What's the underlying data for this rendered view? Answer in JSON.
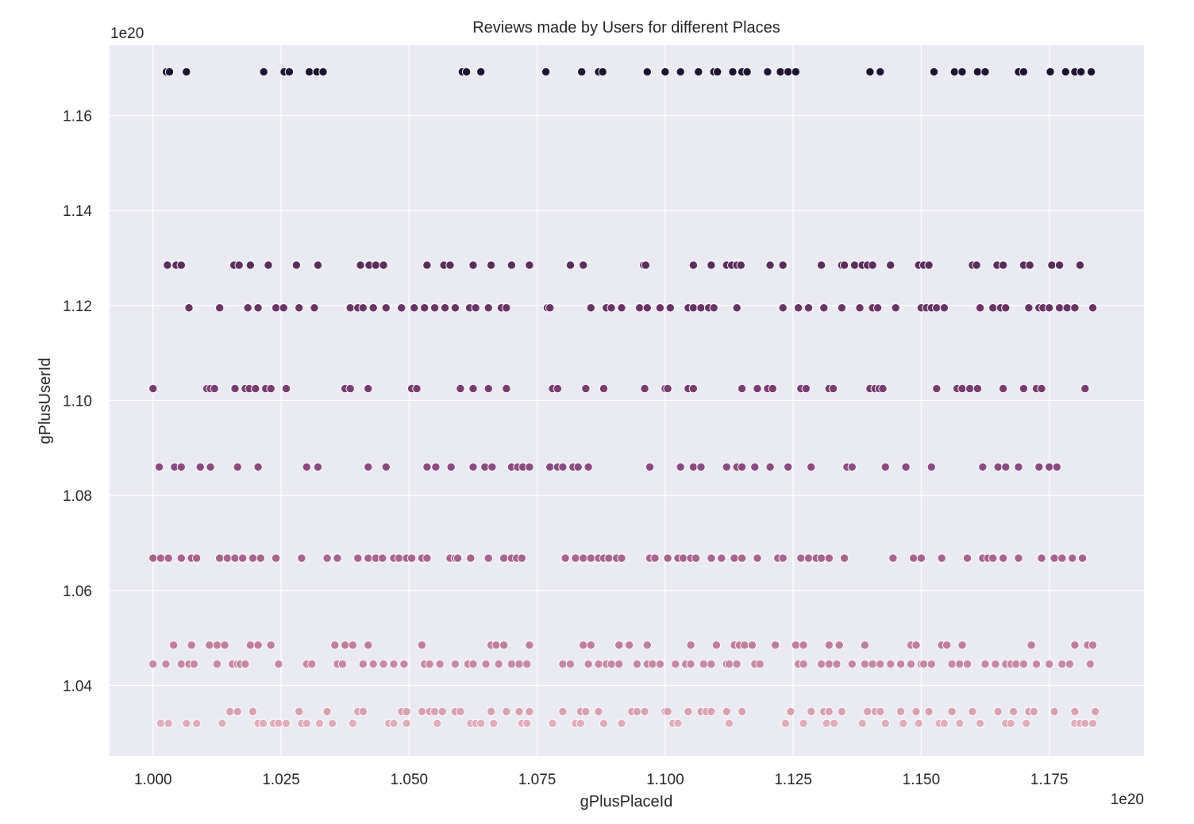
{
  "chart_data": {
    "type": "scatter",
    "title": "Reviews made by Users for different Places",
    "xlabel": "gPlusPlaceId",
    "ylabel": "gPlusUserId",
    "x_offset_label": "1e20",
    "y_offset_label": "1e20",
    "xlim": [
      0.9915,
      1.1935
    ],
    "ylim": [
      1.0252,
      1.1748
    ],
    "x_ticks": [
      1.0,
      1.025,
      1.05,
      1.075,
      1.1,
      1.125,
      1.15,
      1.175
    ],
    "x_tick_labels": [
      "1.000",
      "1.025",
      "1.050",
      "1.075",
      "1.100",
      "1.125",
      "1.150",
      "1.175"
    ],
    "y_ticks": [
      1.04,
      1.06,
      1.08,
      1.1,
      1.12,
      1.14,
      1.16
    ],
    "y_tick_labels": [
      "1.04",
      "1.06",
      "1.08",
      "1.10",
      "1.12",
      "1.14",
      "1.16"
    ],
    "grid": true,
    "background": "#eaeaf2",
    "grid_color": "#ffffff",
    "series": [
      {
        "y": 1.1692,
        "color": "#1d1533",
        "x": [
          1.0026,
          1.0032,
          1.0065,
          1.0216,
          1.0256,
          1.0266,
          1.0305,
          1.032,
          1.0332,
          1.0604,
          1.0612,
          1.064,
          1.0767,
          1.0837,
          1.087,
          1.0878,
          1.0965,
          1.1,
          1.103,
          1.1065,
          1.1095,
          1.1102,
          1.1132,
          1.115,
          1.116,
          1.12,
          1.1225,
          1.124,
          1.1255,
          1.14,
          1.142,
          1.1525,
          1.1565,
          1.158,
          1.161,
          1.1625,
          1.169,
          1.17,
          1.1752,
          1.1782,
          1.18,
          1.1812,
          1.1832
        ]
      },
      {
        "y": 1.1285,
        "color": "#5b2e5e",
        "x": [
          1.0028,
          1.0045,
          1.0055,
          1.0158,
          1.0168,
          1.019,
          1.0225,
          1.028,
          1.0322,
          1.0405,
          1.0422,
          1.0435,
          1.045,
          1.0535,
          1.0568,
          1.058,
          1.0625,
          1.066,
          1.07,
          1.0735,
          1.0815,
          1.084,
          1.0958,
          1.0962,
          1.1055,
          1.109,
          1.112,
          1.113,
          1.114,
          1.1148,
          1.1205,
          1.123,
          1.1305,
          1.1345,
          1.135,
          1.137,
          1.1385,
          1.1395,
          1.1405,
          1.144,
          1.1495,
          1.1505,
          1.1515,
          1.16,
          1.1608,
          1.1648,
          1.166,
          1.17,
          1.1712,
          1.1755,
          1.177,
          1.181
        ]
      },
      {
        "y": 1.1195,
        "color": "#6a3467",
        "x": [
          1.007,
          1.013,
          1.0185,
          1.0205,
          1.024,
          1.0255,
          1.0285,
          1.0315,
          1.0385,
          1.04,
          1.041,
          1.043,
          1.0455,
          1.0485,
          1.051,
          1.053,
          1.055,
          1.057,
          1.059,
          1.0618,
          1.063,
          1.0655,
          1.068,
          1.069,
          1.077,
          1.0775,
          1.0855,
          1.0885,
          1.0895,
          1.0915,
          1.095,
          1.0965,
          1.099,
          1.101,
          1.1045,
          1.1055,
          1.107,
          1.1085,
          1.1095,
          1.114,
          1.123,
          1.126,
          1.128,
          1.131,
          1.1345,
          1.138,
          1.1405,
          1.1415,
          1.145,
          1.15,
          1.151,
          1.152,
          1.153,
          1.1545,
          1.1615,
          1.164,
          1.1655,
          1.1665,
          1.171,
          1.173,
          1.1738,
          1.175,
          1.177,
          1.1785,
          1.18,
          1.1835
        ]
      },
      {
        "y": 1.1025,
        "color": "#7a3c72",
        "x": [
          1.0,
          1.0105,
          1.0112,
          1.012,
          1.016,
          1.018,
          1.0188,
          1.02,
          1.022,
          1.023,
          1.026,
          1.0375,
          1.0385,
          1.042,
          1.0505,
          1.0515,
          1.06,
          1.0625,
          1.0655,
          1.069,
          1.078,
          1.079,
          1.0845,
          1.088,
          1.096,
          1.1,
          1.1005,
          1.1045,
          1.1055,
          1.115,
          1.118,
          1.12,
          1.121,
          1.1265,
          1.1275,
          1.132,
          1.1328,
          1.14,
          1.141,
          1.1418,
          1.1425,
          1.153,
          1.157,
          1.158,
          1.1595,
          1.161,
          1.166,
          1.17,
          1.1725,
          1.1735,
          1.182
        ]
      },
      {
        "y": 1.086,
        "color": "#8c4a82",
        "x": [
          1.0012,
          1.0042,
          1.0055,
          1.0092,
          1.0112,
          1.0165,
          1.0205,
          1.03,
          1.0322,
          1.042,
          1.0455,
          1.0535,
          1.0552,
          1.0582,
          1.0625,
          1.0648,
          1.0662,
          1.07,
          1.0712,
          1.0722,
          1.0735,
          1.0775,
          1.079,
          1.08,
          1.082,
          1.083,
          1.085,
          1.097,
          1.103,
          1.1055,
          1.107,
          1.112,
          1.114,
          1.115,
          1.1175,
          1.1205,
          1.124,
          1.1285,
          1.1355,
          1.1365,
          1.143,
          1.147,
          1.152,
          1.162,
          1.165,
          1.1665,
          1.169,
          1.173,
          1.175,
          1.1765
        ]
      },
      {
        "y": 1.0668,
        "color": "#a9638f",
        "x": [
          1.0,
          1.0015,
          1.003,
          1.0055,
          1.0075,
          1.0085,
          1.013,
          1.0145,
          1.016,
          1.0175,
          1.0195,
          1.021,
          1.024,
          1.029,
          1.034,
          1.036,
          1.04,
          1.042,
          1.0435,
          1.0448,
          1.047,
          1.048,
          1.0495,
          1.0505,
          1.0525,
          1.0535,
          1.058,
          1.059,
          1.0595,
          1.062,
          1.0655,
          1.0685,
          1.07,
          1.071,
          1.072,
          1.0805,
          1.0825,
          1.084,
          1.0855,
          1.087,
          1.088,
          1.089,
          1.0905,
          1.0915,
          1.097,
          1.098,
          1.1005,
          1.1025,
          1.1035,
          1.105,
          1.106,
          1.109,
          1.111,
          1.1135,
          1.115,
          1.118,
          1.122,
          1.123,
          1.1265,
          1.128,
          1.1295,
          1.1305,
          1.132,
          1.135,
          1.1445,
          1.1485,
          1.15,
          1.154,
          1.159,
          1.162,
          1.163,
          1.164,
          1.166,
          1.169,
          1.1735,
          1.176,
          1.1775,
          1.1795,
          1.1815
        ]
      },
      {
        "y": 1.0485,
        "color": "#c07e9b",
        "x": [
          1.004,
          1.0075,
          1.011,
          1.0125,
          1.014,
          1.019,
          1.0205,
          1.023,
          1.0355,
          1.0375,
          1.039,
          1.042,
          1.0525,
          1.066,
          1.067,
          1.0685,
          1.0735,
          1.084,
          1.0855,
          1.091,
          1.093,
          1.0965,
          1.105,
          1.11,
          1.1135,
          1.1145,
          1.1155,
          1.117,
          1.1215,
          1.1255,
          1.127,
          1.132,
          1.134,
          1.139,
          1.148,
          1.149,
          1.154,
          1.155,
          1.158,
          1.1715,
          1.18,
          1.1825,
          1.1835
        ]
      },
      {
        "y": 1.0445,
        "color": "#c887a2",
        "x": [
          1.0,
          1.0025,
          1.0055,
          1.007,
          1.008,
          1.0125,
          1.0155,
          1.0165,
          1.017,
          1.018,
          1.0245,
          1.03,
          1.031,
          1.036,
          1.037,
          1.041,
          1.043,
          1.045,
          1.047,
          1.049,
          1.053,
          1.054,
          1.056,
          1.059,
          1.0615,
          1.0625,
          1.065,
          1.0675,
          1.07,
          1.0715,
          1.073,
          1.08,
          1.0815,
          1.085,
          1.087,
          1.0885,
          1.0895,
          1.091,
          1.0945,
          1.0965,
          1.0975,
          1.099,
          1.102,
          1.104,
          1.105,
          1.1075,
          1.109,
          1.112,
          1.1125,
          1.114,
          1.1175,
          1.1185,
          1.126,
          1.127,
          1.1305,
          1.132,
          1.1335,
          1.1365,
          1.139,
          1.1405,
          1.142,
          1.144,
          1.146,
          1.148,
          1.15,
          1.1505,
          1.152,
          1.156,
          1.1575,
          1.159,
          1.1625,
          1.1645,
          1.1665,
          1.1675,
          1.1685,
          1.17,
          1.1725,
          1.175,
          1.1775,
          1.179,
          1.183
        ]
      },
      {
        "y": 1.0345,
        "color": "#d9a0b1",
        "x": [
          1.015,
          1.0165,
          1.0195,
          1.0285,
          1.034,
          1.04,
          1.041,
          1.0485,
          1.0495,
          1.0525,
          1.054,
          1.055,
          1.0565,
          1.059,
          1.06,
          1.066,
          1.069,
          1.0715,
          1.0735,
          1.08,
          1.0835,
          1.0845,
          1.087,
          1.0935,
          1.0945,
          1.096,
          1.1,
          1.1005,
          1.1045,
          1.107,
          1.108,
          1.109,
          1.112,
          1.115,
          1.1245,
          1.1285,
          1.131,
          1.132,
          1.1345,
          1.1395,
          1.141,
          1.142,
          1.146,
          1.149,
          1.1515,
          1.156,
          1.16,
          1.165,
          1.168,
          1.171,
          1.172,
          1.176,
          1.18,
          1.184
        ]
      },
      {
        "y": 1.032,
        "color": "#e0acbb",
        "x": [
          1.0015,
          1.003,
          1.0065,
          1.0085,
          1.0135,
          1.0205,
          1.0215,
          1.0235,
          1.0245,
          1.026,
          1.029,
          1.03,
          1.0325,
          1.035,
          1.039,
          1.046,
          1.047,
          1.0495,
          1.0555,
          1.062,
          1.063,
          1.064,
          1.0665,
          1.072,
          1.073,
          1.078,
          1.0825,
          1.0835,
          1.088,
          1.0915,
          1.1015,
          1.1025,
          1.1125,
          1.1235,
          1.127,
          1.1315,
          1.133,
          1.1385,
          1.143,
          1.1465,
          1.1495,
          1.1535,
          1.1545,
          1.1575,
          1.1615,
          1.1665,
          1.1675,
          1.1705,
          1.18,
          1.181,
          1.182,
          1.1835
        ]
      }
    ]
  }
}
